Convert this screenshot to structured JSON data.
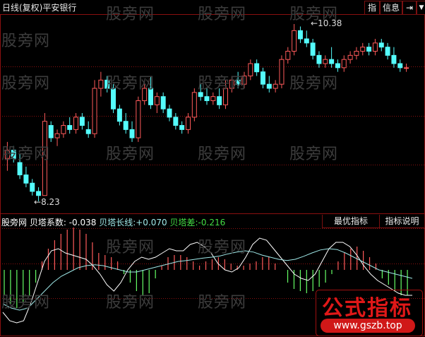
{
  "header": {
    "title": "日线(复权)",
    "stock": "平安银行",
    "buttons": [
      "指",
      "信息"
    ],
    "nav_icons": [
      "arrow-right-bar-icon",
      "chevron-down-icon"
    ]
  },
  "watermark": "股旁网",
  "price_labels": {
    "high": "10.38",
    "low": "8.23"
  },
  "indicator": {
    "name": "股旁网 贝塔系数:",
    "value": "-0.038",
    "long_label": "贝塔长线:",
    "long_value": "+0.070",
    "diff_label": "贝塔差:",
    "diff_value": "-0.216",
    "buttons": [
      "最优指标",
      "指标说明"
    ]
  },
  "logo": {
    "text": "公式指标",
    "url": "www.gszb.top"
  },
  "colors": {
    "up": "#ff5a5a",
    "down": "#54fcfc",
    "grid": "#8a1010",
    "white_line": "#ffffff",
    "cyan_line": "#9fe8e8",
    "neg_bar": "#66ff66"
  },
  "chart_data": [
    {
      "type": "candlestick",
      "ylim": [
        8.0,
        10.6
      ],
      "high_marker": 10.38,
      "low_marker": 8.23,
      "ohlc": [
        [
          8.75,
          8.95,
          8.6,
          8.85
        ],
        [
          8.85,
          8.9,
          8.7,
          8.75
        ],
        [
          8.7,
          8.8,
          8.5,
          8.55
        ],
        [
          8.55,
          8.65,
          8.4,
          8.45
        ],
        [
          8.45,
          8.5,
          8.3,
          8.35
        ],
        [
          8.35,
          8.4,
          8.23,
          8.3
        ],
        [
          8.3,
          9.3,
          8.3,
          9.2
        ],
        [
          9.15,
          9.2,
          8.95,
          9.0
        ],
        [
          9.0,
          9.1,
          8.9,
          9.05
        ],
        [
          9.05,
          9.2,
          9.0,
          9.15
        ],
        [
          9.15,
          9.25,
          9.05,
          9.1
        ],
        [
          9.1,
          9.3,
          9.05,
          9.25
        ],
        [
          9.25,
          9.3,
          9.1,
          9.15
        ],
        [
          9.1,
          9.2,
          9.0,
          9.05
        ],
        [
          9.05,
          9.7,
          9.0,
          9.6
        ],
        [
          9.6,
          9.8,
          9.5,
          9.7
        ],
        [
          9.7,
          9.75,
          9.55,
          9.6
        ],
        [
          9.6,
          9.65,
          9.3,
          9.35
        ],
        [
          9.35,
          9.4,
          9.15,
          9.2
        ],
        [
          9.2,
          9.3,
          9.05,
          9.1
        ],
        [
          9.1,
          9.2,
          8.95,
          9.0
        ],
        [
          9.0,
          9.5,
          8.95,
          9.45
        ],
        [
          9.45,
          9.65,
          9.4,
          9.6
        ],
        [
          9.6,
          9.75,
          9.35,
          9.4
        ],
        [
          9.4,
          9.55,
          9.3,
          9.5
        ],
        [
          9.5,
          9.55,
          9.3,
          9.35
        ],
        [
          9.35,
          9.4,
          9.2,
          9.25
        ],
        [
          9.25,
          9.3,
          9.1,
          9.15
        ],
        [
          9.15,
          9.2,
          9.05,
          9.1
        ],
        [
          9.1,
          9.3,
          9.05,
          9.25
        ],
        [
          9.25,
          9.6,
          9.2,
          9.55
        ],
        [
          9.55,
          9.65,
          9.45,
          9.5
        ],
        [
          9.5,
          9.6,
          9.4,
          9.45
        ],
        [
          9.45,
          9.55,
          9.4,
          9.5
        ],
        [
          9.5,
          9.6,
          9.35,
          9.4
        ],
        [
          9.4,
          9.7,
          9.35,
          9.6
        ],
        [
          9.6,
          9.75,
          9.55,
          9.7
        ],
        [
          9.7,
          9.8,
          9.6,
          9.65
        ],
        [
          9.65,
          9.8,
          9.6,
          9.75
        ],
        [
          9.75,
          9.95,
          9.7,
          9.9
        ],
        [
          9.9,
          9.95,
          9.75,
          9.8
        ],
        [
          9.8,
          9.85,
          9.6,
          9.65
        ],
        [
          9.65,
          9.75,
          9.55,
          9.6
        ],
        [
          9.6,
          9.7,
          9.55,
          9.65
        ],
        [
          9.65,
          10.0,
          9.6,
          9.95
        ],
        [
          9.95,
          10.1,
          9.9,
          10.05
        ],
        [
          10.05,
          10.38,
          10.0,
          10.3
        ],
        [
          10.3,
          10.35,
          10.15,
          10.2
        ],
        [
          10.2,
          10.3,
          10.1,
          10.15
        ],
        [
          10.15,
          10.2,
          9.95,
          10.0
        ],
        [
          10.0,
          10.05,
          9.85,
          9.9
        ],
        [
          9.9,
          10.0,
          9.85,
          9.95
        ],
        [
          9.95,
          10.1,
          9.85,
          9.9
        ],
        [
          9.9,
          9.95,
          9.8,
          9.85
        ],
        [
          9.85,
          10.0,
          9.8,
          9.95
        ],
        [
          9.95,
          10.05,
          9.9,
          10.0
        ],
        [
          10.0,
          10.1,
          9.95,
          10.05
        ],
        [
          10.05,
          10.15,
          10.0,
          10.1
        ],
        [
          10.1,
          10.15,
          10.0,
          10.05
        ],
        [
          10.05,
          10.2,
          10.0,
          10.15
        ],
        [
          10.15,
          10.2,
          10.05,
          10.1
        ],
        [
          10.1,
          10.15,
          9.95,
          10.0
        ],
        [
          10.0,
          10.1,
          9.85,
          9.9
        ],
        [
          9.9,
          9.95,
          9.8,
          9.85
        ],
        [
          9.85,
          9.9,
          9.8,
          9.85
        ]
      ]
    },
    {
      "type": "bar+line",
      "ylim": [
        -1.3,
        1.1
      ],
      "hist": [
        -0.6,
        -0.8,
        -0.9,
        -0.8,
        -0.6,
        -0.3,
        0.2,
        0.5,
        0.7,
        0.85,
        0.95,
        1.0,
        0.95,
        0.85,
        0.65,
        0.4,
        0.35,
        0.3,
        0.2,
        -0.1,
        -0.3,
        -0.5,
        -0.6,
        -0.55,
        -0.2,
        0.1,
        0.3,
        0.35,
        0.35,
        0.3,
        0.2,
        0.1,
        0.2,
        0.25,
        0.3,
        0.25,
        0.15,
        0.1,
        0.1,
        0.15,
        0.2,
        0.3,
        0.3,
        0.15,
        -0.0,
        -0.3,
        -0.45,
        -0.5,
        -0.55,
        -0.5,
        -0.4,
        -0.3,
        -0.1,
        0.2,
        0.4,
        0.5,
        0.55,
        0.45,
        0.3,
        0.15,
        -0.2,
        -0.35,
        -0.5,
        -0.6,
        -0.6
      ],
      "white": [
        -1.0,
        -1.2,
        -1.25,
        -1.2,
        -0.8,
        -0.3,
        0.2,
        0.45,
        0.5,
        0.4,
        0.35,
        0.3,
        0.25,
        0.1,
        -0.1,
        -0.35,
        -0.5,
        -0.3,
        0.0,
        0.2,
        0.3,
        0.25,
        0.3,
        0.4,
        0.5,
        0.45,
        0.45,
        0.6,
        0.65,
        0.55,
        0.4,
        0.15,
        0.0,
        -0.05,
        0.05,
        0.3,
        0.6,
        0.75,
        0.7,
        0.5,
        0.3,
        0.1,
        -0.1,
        -0.2,
        -0.25,
        -0.1,
        0.2,
        0.5,
        0.65,
        0.65,
        0.55,
        0.35,
        0.1,
        -0.1,
        -0.25,
        -0.35,
        -0.45,
        -0.55,
        -0.6,
        -0.6
      ],
      "cyan": [
        -0.8,
        -0.9,
        -0.95,
        -0.9,
        -0.7,
        -0.5,
        -0.3,
        -0.15,
        -0.05,
        0.05,
        0.1,
        0.12,
        0.1,
        0.05,
        0.0,
        -0.05,
        -0.05,
        0.0,
        0.05,
        0.1,
        0.15,
        0.2,
        0.22,
        0.25,
        0.28,
        0.3,
        0.33,
        0.38,
        0.42,
        0.45,
        0.42,
        0.35,
        0.3,
        0.25,
        0.22,
        0.25,
        0.32,
        0.4,
        0.47,
        0.5,
        0.48,
        0.4,
        0.3,
        0.2,
        0.1,
        0.0,
        -0.05,
        -0.1,
        -0.15,
        -0.2
      ]
    }
  ]
}
